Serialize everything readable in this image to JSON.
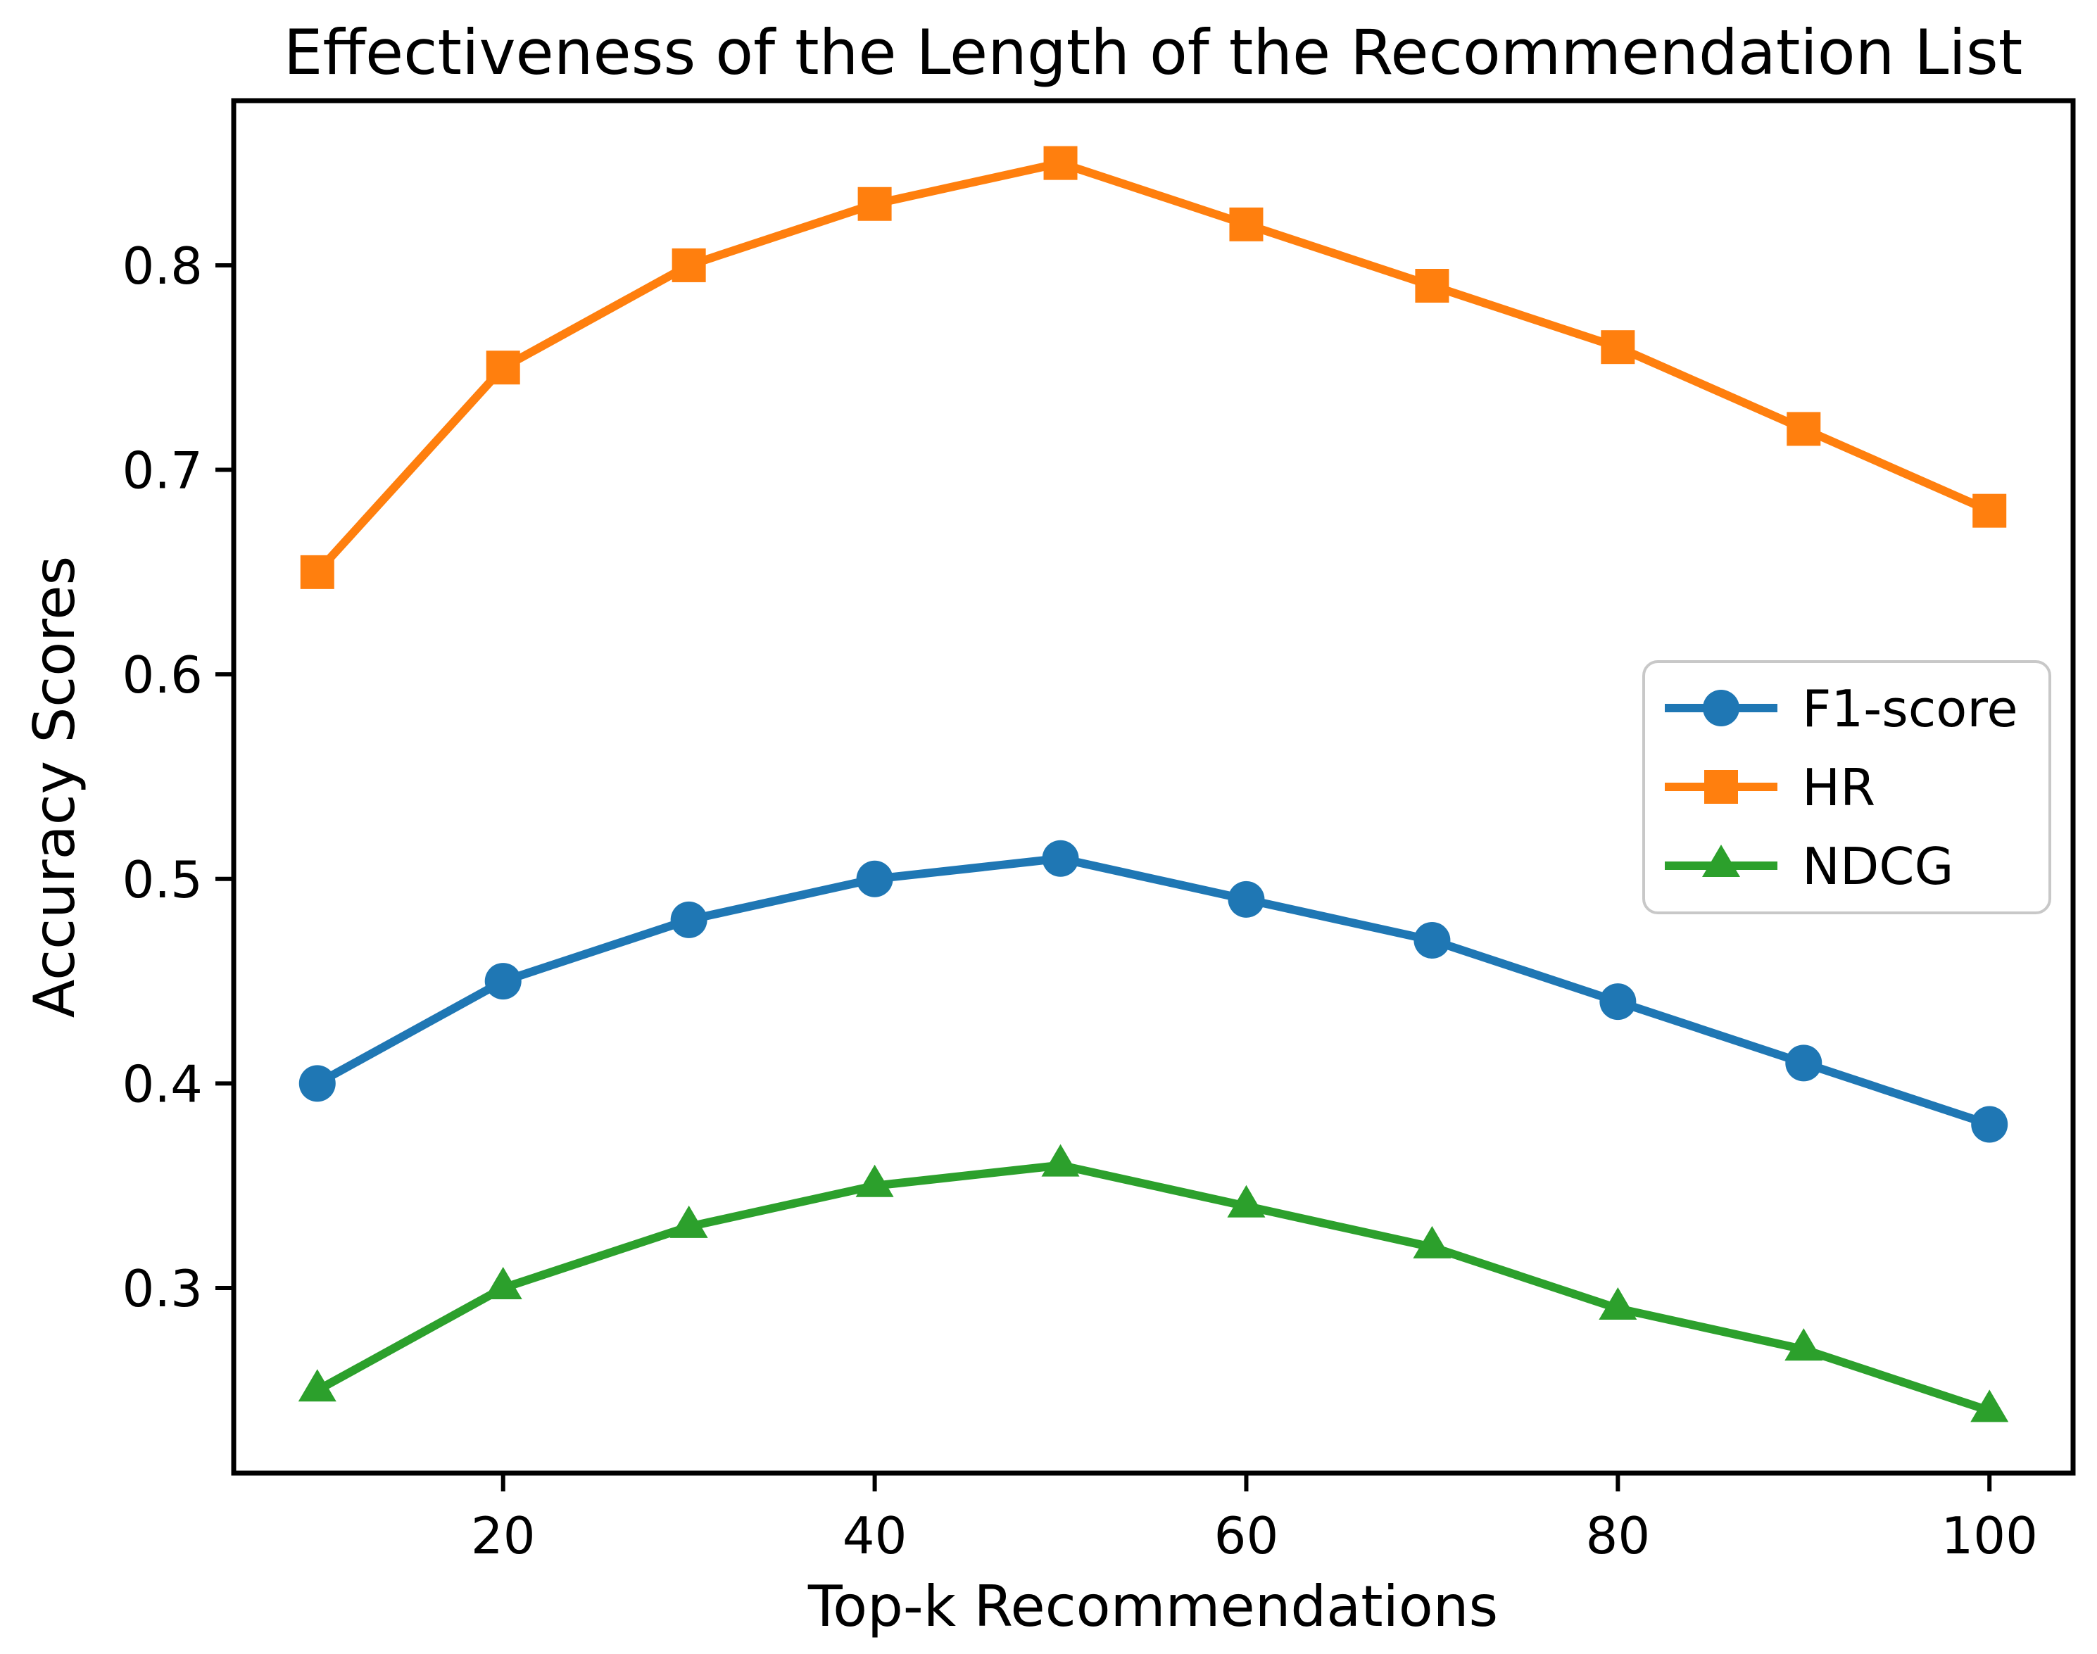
{
  "chart_data": {
    "type": "line",
    "title": "Effectiveness of the Length of the Recommendation List",
    "xlabel": "Top-k Recommendations",
    "ylabel": "Accuracy Scores",
    "x": [
      10,
      20,
      30,
      40,
      50,
      60,
      70,
      80,
      90,
      100
    ],
    "series": [
      {
        "name": "F1-score",
        "color": "#1f77b4",
        "marker": "circle",
        "values": [
          0.4,
          0.45,
          0.48,
          0.5,
          0.51,
          0.49,
          0.47,
          0.44,
          0.41,
          0.38
        ]
      },
      {
        "name": "HR",
        "color": "#ff7f0e",
        "marker": "square",
        "values": [
          0.65,
          0.75,
          0.8,
          0.83,
          0.85,
          0.82,
          0.79,
          0.76,
          0.72,
          0.68
        ]
      },
      {
        "name": "NDCG",
        "color": "#2ca02c",
        "marker": "triangle",
        "values": [
          0.25,
          0.3,
          0.33,
          0.35,
          0.36,
          0.34,
          0.32,
          0.29,
          0.27,
          0.24
        ]
      }
    ],
    "x_ticks": [
      20,
      40,
      60,
      80,
      100
    ],
    "y_ticks": [
      0.3,
      0.4,
      0.5,
      0.6,
      0.7,
      0.8
    ],
    "xlim": [
      5.5,
      104.5
    ],
    "ylim": [
      0.2095,
      0.8805
    ],
    "grid": false,
    "legend": {
      "position": "center-right",
      "entries": [
        "F1-score",
        "HR",
        "NDCG"
      ]
    },
    "colors": {
      "axis": "#000000",
      "legend_border": "#c8c8c8",
      "background": "#ffffff"
    }
  }
}
